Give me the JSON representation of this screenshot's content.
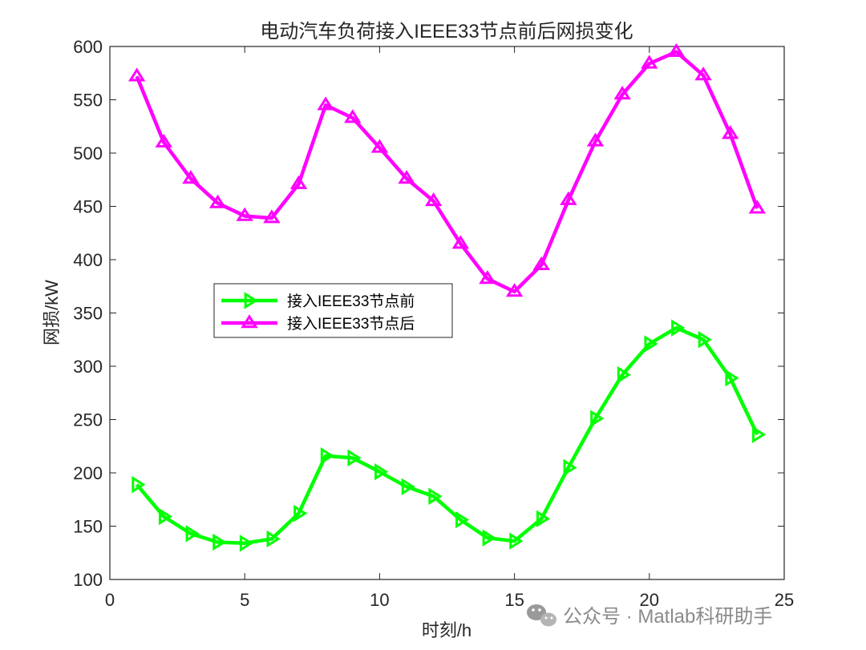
{
  "chart_data": {
    "type": "line",
    "title": "电动汽车负荷接入IEEE33节点前后网损变化",
    "xlabel": "时刻/h",
    "ylabel": "网损/kW",
    "xlim": [
      0,
      25
    ],
    "ylim": [
      100,
      600
    ],
    "xticks": [
      0,
      5,
      10,
      15,
      20,
      25
    ],
    "yticks": [
      100,
      150,
      200,
      250,
      300,
      350,
      400,
      450,
      500,
      550,
      600
    ],
    "grid": false,
    "legend_position": "middle-left",
    "x": [
      1,
      2,
      3,
      4,
      5,
      6,
      7,
      8,
      9,
      10,
      11,
      12,
      13,
      14,
      15,
      16,
      17,
      18,
      19,
      20,
      21,
      22,
      23,
      24
    ],
    "series": [
      {
        "name": "接入IEEE33节点前",
        "color": "#00ff00",
        "marker": "triangle-right",
        "values": [
          189,
          159,
          143,
          135,
          134,
          138,
          162,
          216,
          214,
          201,
          187,
          178,
          156,
          139,
          136,
          157,
          205,
          251,
          292,
          321,
          336,
          325,
          289,
          236
        ]
      },
      {
        "name": "接入IEEE33节点后",
        "color": "#ff00ff",
        "marker": "triangle-up",
        "values": [
          572,
          510,
          476,
          453,
          441,
          439,
          471,
          545,
          533,
          505,
          476,
          455,
          415,
          382,
          370,
          395,
          456,
          511,
          555,
          584,
          595,
          573,
          518,
          448
        ]
      }
    ]
  },
  "watermark": {
    "icon": "wechat-icon",
    "text": "公众号 · Matlab科研助手"
  }
}
